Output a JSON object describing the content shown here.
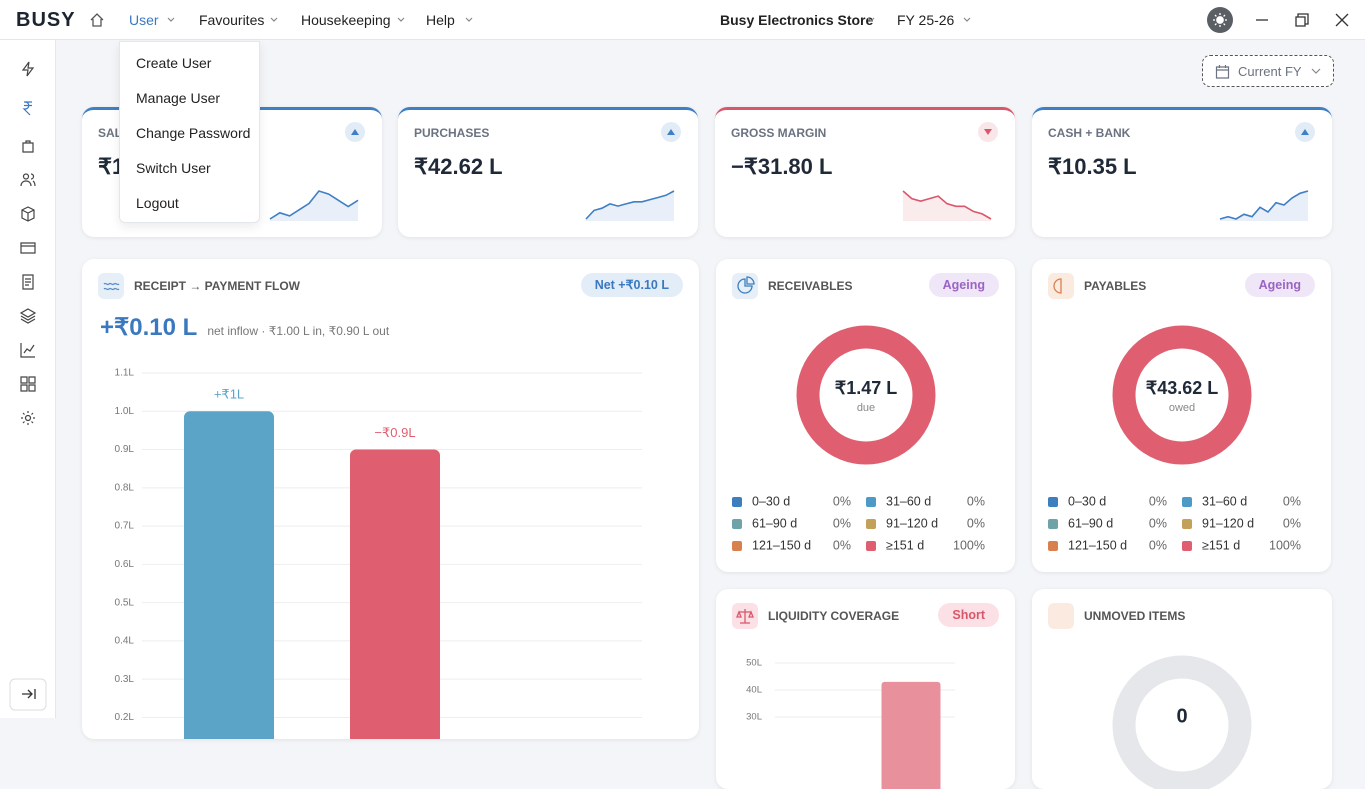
{
  "topbar": {
    "logo": "BUSY",
    "menu": [
      "User",
      "Favourites",
      "Housekeeping",
      "Help"
    ],
    "company": "Busy Electronics Store",
    "year": "FY 25-26"
  },
  "user_menu": [
    "Create User",
    "Manage User",
    "Change Password",
    "Switch User",
    "Logout"
  ],
  "period": "Current FY",
  "kpis": [
    {
      "label": "SAL",
      "value": "₹1",
      "trend": "up",
      "color": "#3f7fc4",
      "sparkline": [
        2,
        4,
        3,
        5,
        7,
        11,
        10,
        8,
        6,
        8
      ]
    },
    {
      "label": "PURCHASES",
      "value": "₹42.62 L",
      "trend": "up",
      "color": "#3f7fc4",
      "sparkline": [
        1,
        5,
        6,
        8,
        7,
        8,
        9,
        9,
        10,
        11,
        12,
        14
      ]
    },
    {
      "label": "GROSS MARGIN",
      "value": "−₹31.80 L",
      "trend": "down",
      "color": "#d9576a",
      "sparkline": [
        11,
        8,
        7,
        8,
        9,
        6,
        5,
        5,
        3,
        2,
        0
      ]
    },
    {
      "label": "CASH + BANK",
      "value": "₹10.35 L",
      "trend": "up",
      "color": "#3f7fc4",
      "sparkline": [
        1,
        2,
        1,
        3,
        2,
        6,
        4,
        8,
        7,
        10,
        12,
        13
      ]
    }
  ],
  "flow": {
    "title": "RECEIPT → PAYMENT FLOW",
    "badge": "Net +₹0.10 L",
    "value": "+₹0.10 L",
    "note": "net inflow · ₹1.00 L in, ₹0.90 L out",
    "chart": {
      "type": "bar",
      "values": [
        1.0,
        0.9
      ],
      "value_labels": [
        "+₹1L",
        "−₹0.9L"
      ],
      "colors": [
        "#5ba4c8",
        "#df5f70"
      ],
      "ylim": [
        0,
        1.1
      ],
      "yticks": [
        {
          "value": 0.2,
          "label": "0.2L"
        },
        {
          "value": 0.3,
          "label": "0.3L"
        },
        {
          "value": 0.4,
          "label": "0.4L"
        },
        {
          "value": 0.5,
          "label": "0.5L"
        },
        {
          "value": 0.6,
          "label": "0.6L"
        },
        {
          "value": 0.7,
          "label": "0.7L"
        },
        {
          "value": 0.8,
          "label": "0.8L"
        },
        {
          "value": 0.9,
          "label": "0.9L"
        },
        {
          "value": 1,
          "label": "1.0L"
        },
        {
          "value": 1.1,
          "label": "1.1L"
        }
      ],
      "grid": true
    }
  },
  "receivables": {
    "title": "RECEIVABLES",
    "badge": "Ageing",
    "chart": {
      "type": "pie",
      "center_value": "₹1.47 L",
      "center_label": "due",
      "categories": [
        "0–30 d",
        "31–60 d",
        "61–90 d",
        "91–120 d",
        "121–150 d",
        "≥151 d"
      ],
      "values": [
        0,
        0,
        0,
        0,
        0,
        100
      ],
      "value_labels": [
        "0%",
        "0%",
        "0%",
        "0%",
        "0%",
        "100%"
      ],
      "colors": [
        "#3d7ebf",
        "#4e9ac7",
        "#6fa3a8",
        "#c4a15a",
        "#d9804f",
        "#df5f70"
      ]
    }
  },
  "payables": {
    "title": "PAYABLES",
    "badge": "Ageing",
    "chart": {
      "type": "pie",
      "center_value": "₹43.62 L",
      "center_label": "owed",
      "categories": [
        "0–30 d",
        "31–60 d",
        "61–90 d",
        "91–120 d",
        "121–150 d",
        "≥151 d"
      ],
      "values": [
        0,
        0,
        0,
        0,
        0,
        100
      ],
      "value_labels": [
        "0%",
        "0%",
        "0%",
        "0%",
        "0%",
        "100%"
      ],
      "colors": [
        "#3d7ebf",
        "#4e9ac7",
        "#6fa3a8",
        "#c4a15a",
        "#d9804f",
        "#df5f70"
      ]
    }
  },
  "liquidity": {
    "title": "LIQUIDITY COVERAGE",
    "badge": "Short",
    "chart": {
      "type": "bar",
      "values": [
        43
      ],
      "colors": [
        "#e8909c"
      ],
      "ylim": [
        0,
        50
      ],
      "yticks": [
        {
          "value": 30,
          "label": "30L"
        },
        {
          "value": 40,
          "label": "40L"
        },
        {
          "value": 50,
          "label": "50L"
        }
      ],
      "grid": true
    }
  },
  "unmoved": {
    "title": "UNMOVED ITEMS",
    "value": "0"
  }
}
